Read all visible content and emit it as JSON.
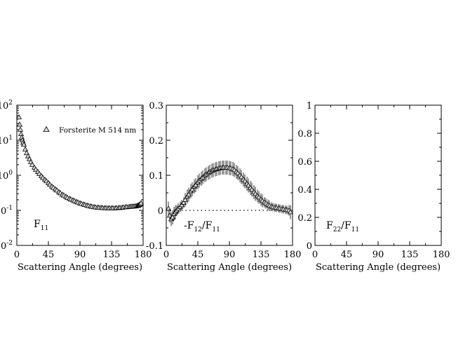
{
  "chart_data": [
    {
      "type": "scatter",
      "xlabel": "Scattering Angle (degrees)",
      "ylabel": "",
      "panel_label": {
        "main": "F",
        "sub": "11"
      },
      "xlim": [
        0,
        180
      ],
      "ylim": [
        0.01,
        100
      ],
      "yscale": "log",
      "xticks": [
        "0",
        "45",
        "90",
        "135",
        "180"
      ],
      "yticks": [
        {
          "base": "10",
          "exp": "-2"
        },
        {
          "base": "10",
          "exp": "-1"
        },
        {
          "base": "10",
          "exp": "0"
        },
        {
          "base": "10",
          "exp": "1"
        },
        {
          "base": "10",
          "exp": "2"
        }
      ],
      "legend": {
        "label": "Forsterite M 514 nm",
        "position": "top-right"
      },
      "grid": false,
      "series": [
        {
          "name": "Forsterite M 514 nm",
          "marker": "triangle",
          "x": [
            3,
            4,
            5,
            6,
            7,
            8,
            9,
            10,
            12,
            14,
            16,
            18,
            20,
            22,
            25,
            27,
            30,
            32,
            35,
            37,
            40,
            42,
            45,
            47,
            50,
            52,
            55,
            57,
            60,
            62,
            65,
            67,
            70,
            72,
            75,
            77,
            80,
            82,
            85,
            87,
            90,
            92,
            95,
            97,
            100,
            102,
            105,
            107,
            110,
            112,
            115,
            117,
            120,
            122,
            125,
            127,
            130,
            132,
            135,
            137,
            140,
            142,
            145,
            147,
            150,
            152,
            155,
            157,
            160,
            162,
            164,
            166,
            168,
            170,
            172,
            173,
            174,
            175,
            176,
            177
          ],
          "y": [
            45,
            28,
            20,
            15,
            12,
            10,
            8.5,
            7.5,
            5.5,
            4.3,
            3.5,
            2.9,
            2.4,
            2.0,
            1.65,
            1.45,
            1.25,
            1.1,
            0.95,
            0.85,
            0.75,
            0.68,
            0.6,
            0.54,
            0.48,
            0.44,
            0.4,
            0.37,
            0.33,
            0.31,
            0.28,
            0.265,
            0.245,
            0.23,
            0.215,
            0.205,
            0.195,
            0.185,
            0.175,
            0.168,
            0.16,
            0.154,
            0.148,
            0.143,
            0.138,
            0.134,
            0.13,
            0.127,
            0.124,
            0.122,
            0.12,
            0.119,
            0.118,
            0.117,
            0.116,
            0.116,
            0.115,
            0.115,
            0.115,
            0.115,
            0.115,
            0.116,
            0.117,
            0.118,
            0.12,
            0.121,
            0.123,
            0.124,
            0.126,
            0.127,
            0.128,
            0.129,
            0.13,
            0.132,
            0.135,
            0.137,
            0.14,
            0.145,
            0.15,
            0.16
          ]
        }
      ]
    },
    {
      "type": "scatter",
      "xlabel": "Scattering Angle (degrees)",
      "ylabel": "",
      "panel_label": {
        "main": "-F",
        "sub": "12",
        "main2": "/F",
        "sub2": "11"
      },
      "xlim": [
        0,
        180
      ],
      "ylim": [
        -0.1,
        0.3
      ],
      "yscale": "linear",
      "xticks": [
        "0",
        "45",
        "90",
        "135",
        "180"
      ],
      "yticks": [
        "-0.1",
        "0",
        "0.1",
        "0.2",
        "0.3"
      ],
      "reference_line": {
        "y": 0,
        "style": "dotted"
      },
      "grid": false,
      "series": [
        {
          "marker": "triangle",
          "x": [
            3,
            5,
            7,
            9,
            11,
            13,
            15,
            17,
            20,
            22,
            25,
            27,
            30,
            32,
            35,
            37,
            40,
            42,
            45,
            47,
            50,
            52,
            55,
            57,
            60,
            62,
            65,
            67,
            70,
            72,
            75,
            77,
            80,
            82,
            85,
            87,
            90,
            92,
            95,
            97,
            100,
            102,
            105,
            107,
            110,
            112,
            115,
            117,
            120,
            122,
            125,
            127,
            130,
            132,
            135,
            137,
            140,
            142,
            145,
            147,
            150,
            152,
            155,
            157,
            160,
            162,
            165,
            167,
            170,
            172,
            175,
            177
          ],
          "y": [
            0.005,
            -0.015,
            -0.025,
            -0.02,
            -0.01,
            -0.005,
            0.0,
            0.005,
            0.01,
            0.015,
            0.022,
            0.03,
            0.04,
            0.045,
            0.055,
            0.06,
            0.068,
            0.072,
            0.08,
            0.085,
            0.09,
            0.094,
            0.1,
            0.103,
            0.107,
            0.11,
            0.113,
            0.115,
            0.117,
            0.118,
            0.12,
            0.121,
            0.122,
            0.122,
            0.122,
            0.122,
            0.121,
            0.12,
            0.118,
            0.115,
            0.11,
            0.106,
            0.1,
            0.095,
            0.088,
            0.083,
            0.076,
            0.071,
            0.064,
            0.059,
            0.052,
            0.047,
            0.041,
            0.037,
            0.031,
            0.027,
            0.023,
            0.02,
            0.016,
            0.013,
            0.011,
            0.009,
            0.008,
            0.007,
            0.006,
            0.005,
            0.004,
            0.003,
            0.002,
            0.001,
            0.0,
            -0.005
          ],
          "err": [
            0.02,
            0.02,
            0.02,
            0.02,
            0.02,
            0.02,
            0.015,
            0.015,
            0.015,
            0.015,
            0.015,
            0.02,
            0.02,
            0.02,
            0.02,
            0.02,
            0.02,
            0.02,
            0.02,
            0.02,
            0.02,
            0.02,
            0.02,
            0.02,
            0.02,
            0.02,
            0.02,
            0.02,
            0.02,
            0.02,
            0.02,
            0.02,
            0.02,
            0.02,
            0.02,
            0.02,
            0.02,
            0.02,
            0.02,
            0.02,
            0.02,
            0.02,
            0.02,
            0.02,
            0.02,
            0.02,
            0.02,
            0.02,
            0.02,
            0.02,
            0.02,
            0.02,
            0.018,
            0.018,
            0.018,
            0.018,
            0.015,
            0.015,
            0.015,
            0.015,
            0.012,
            0.012,
            0.012,
            0.012,
            0.012,
            0.012,
            0.012,
            0.012,
            0.012,
            0.012,
            0.015,
            0.02
          ]
        }
      ]
    },
    {
      "type": "scatter",
      "xlabel": "Scattering Angle (degrees)",
      "ylabel": "",
      "panel_label": {
        "main": "F",
        "sub": "22",
        "main2": "/F",
        "sub2": "11"
      },
      "xlim": [
        0,
        180
      ],
      "ylim": [
        0,
        1
      ],
      "yscale": "linear",
      "xticks": [
        "0",
        "45",
        "90",
        "135",
        "180"
      ],
      "yticks": [
        "0",
        "0.2",
        "0.4",
        "0.6",
        "0.8",
        "1"
      ],
      "grid": false,
      "series": []
    }
  ]
}
